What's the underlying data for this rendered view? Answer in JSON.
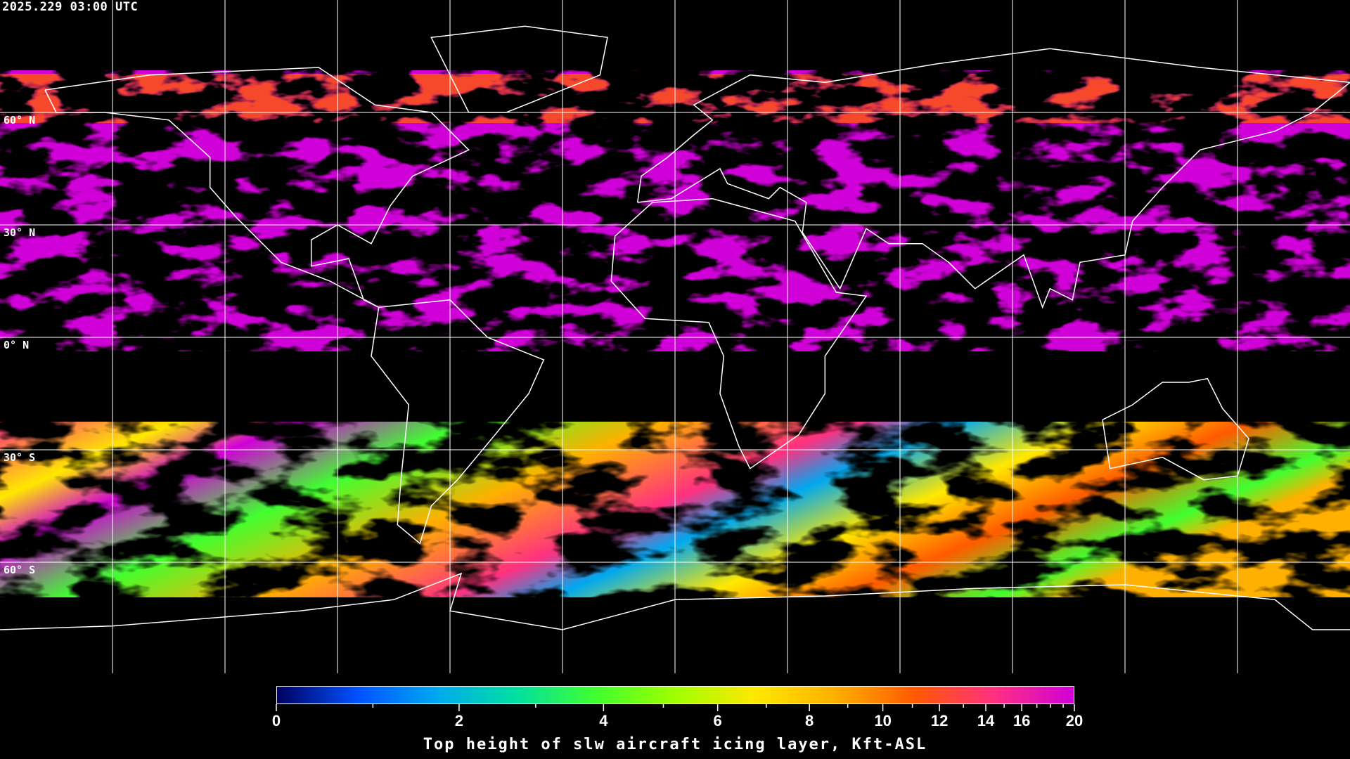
{
  "header": {
    "timestamp": "2025.229 03:00 UTC"
  },
  "map": {
    "projection": "equirectangular",
    "background_color": "#000000",
    "gridline_color": "#ffffff",
    "coastline_color": "#ffffff",
    "lat_labels": [
      "60° N",
      "30° N",
      "0° N",
      "30° S",
      "60° S"
    ]
  },
  "colorbar": {
    "title": "Top height of slw aircraft icing layer, Kft-ASL",
    "min": 0,
    "max": 20,
    "tick_labels": [
      "0",
      "2",
      "4",
      "6",
      "8",
      "10",
      "12",
      "14",
      "16",
      "20"
    ],
    "colors": [
      "#000060",
      "#0050ff",
      "#00a8f0",
      "#00e0a0",
      "#40ff30",
      "#a0ff00",
      "#ffe800",
      "#ffb000",
      "#ff5a00",
      "#ff3080",
      "#d000d8"
    ]
  }
}
